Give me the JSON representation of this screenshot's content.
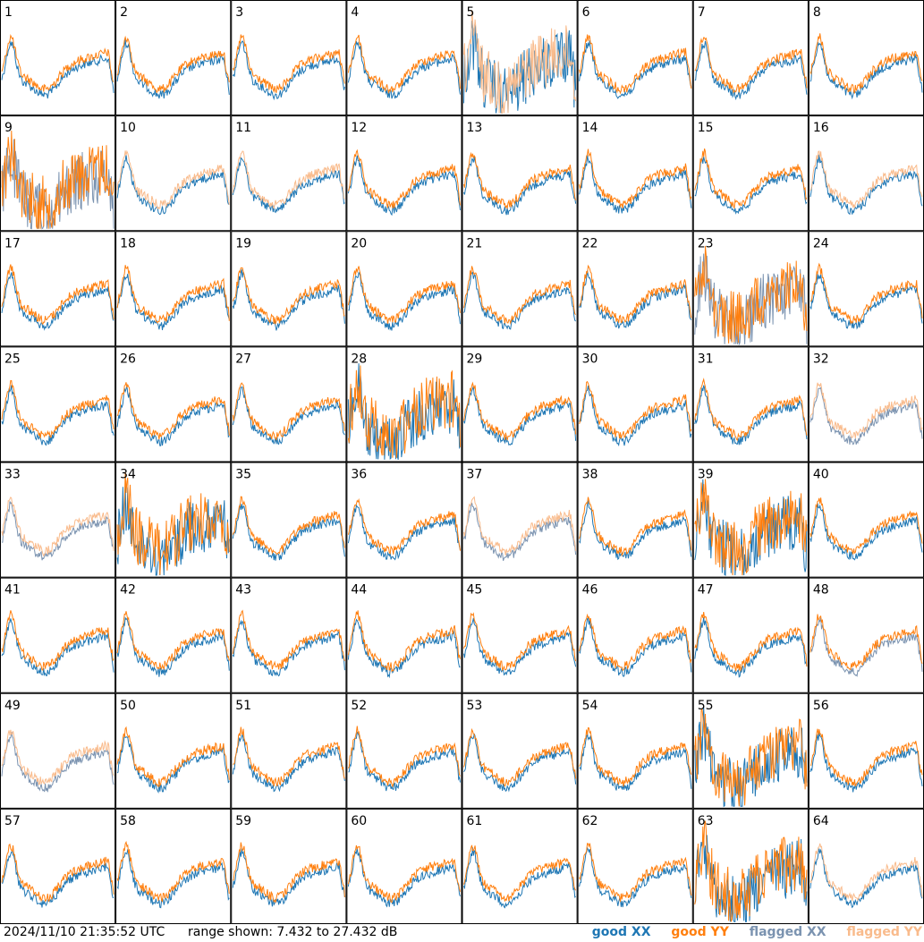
{
  "footer": {
    "timestamp": "2024/11/10 21:35:52 UTC",
    "range": "range shown: 7.432 to 27.432 dB"
  },
  "legend": {
    "good_xx": "good XX",
    "good_yy": "good YY",
    "flagged_xx": "flagged XX",
    "flagged_yy": "flagged YY"
  },
  "colors": {
    "good_xx": "#1f77b4",
    "good_yy": "#ff7f0e",
    "flagged_xx": "#7b93b0",
    "flagged_yy": "#f9bb8c"
  },
  "chart_data": {
    "type": "line",
    "ylim": [
      7.432,
      27.432
    ],
    "grid": "8x8 small multiples",
    "panels": [
      {
        "label": "1",
        "xx": "good",
        "yy": "good"
      },
      {
        "label": "2",
        "xx": "good",
        "yy": "good"
      },
      {
        "label": "3",
        "xx": "good",
        "yy": "good"
      },
      {
        "label": "4",
        "xx": "good",
        "yy": "good"
      },
      {
        "label": "5",
        "xx": "good",
        "yy": "flagged"
      },
      {
        "label": "6",
        "xx": "good",
        "yy": "good"
      },
      {
        "label": "7",
        "xx": "good",
        "yy": "good"
      },
      {
        "label": "8",
        "xx": "good",
        "yy": "good"
      },
      {
        "label": "9",
        "xx": "flagged",
        "yy": "good"
      },
      {
        "label": "10",
        "xx": "good",
        "yy": "flagged"
      },
      {
        "label": "11",
        "xx": "good",
        "yy": "flagged"
      },
      {
        "label": "12",
        "xx": "good",
        "yy": "good"
      },
      {
        "label": "13",
        "xx": "good",
        "yy": "good"
      },
      {
        "label": "14",
        "xx": "good",
        "yy": "good"
      },
      {
        "label": "15",
        "xx": "good",
        "yy": "good"
      },
      {
        "label": "16",
        "xx": "good",
        "yy": "flagged"
      },
      {
        "label": "17",
        "xx": "good",
        "yy": "good"
      },
      {
        "label": "18",
        "xx": "good",
        "yy": "good"
      },
      {
        "label": "19",
        "xx": "good",
        "yy": "good"
      },
      {
        "label": "20",
        "xx": "good",
        "yy": "good"
      },
      {
        "label": "21",
        "xx": "good",
        "yy": "good"
      },
      {
        "label": "22",
        "xx": "good",
        "yy": "good"
      },
      {
        "label": "23",
        "xx": "flagged",
        "yy": "good"
      },
      {
        "label": "24",
        "xx": "good",
        "yy": "good"
      },
      {
        "label": "25",
        "xx": "good",
        "yy": "good"
      },
      {
        "label": "26",
        "xx": "good",
        "yy": "good"
      },
      {
        "label": "27",
        "xx": "good",
        "yy": "good"
      },
      {
        "label": "28",
        "xx": "good",
        "yy": "good"
      },
      {
        "label": "29",
        "xx": "good",
        "yy": "good"
      },
      {
        "label": "30",
        "xx": "good",
        "yy": "good"
      },
      {
        "label": "31",
        "xx": "good",
        "yy": "good"
      },
      {
        "label": "32",
        "xx": "flagged",
        "yy": "flagged"
      },
      {
        "label": "33",
        "xx": "flagged",
        "yy": "flagged"
      },
      {
        "label": "34",
        "xx": "good",
        "yy": "good"
      },
      {
        "label": "35",
        "xx": "good",
        "yy": "good"
      },
      {
        "label": "36",
        "xx": "good",
        "yy": "good"
      },
      {
        "label": "37",
        "xx": "flagged",
        "yy": "flagged"
      },
      {
        "label": "38",
        "xx": "good",
        "yy": "good"
      },
      {
        "label": "39",
        "xx": "good",
        "yy": "good"
      },
      {
        "label": "40",
        "xx": "good",
        "yy": "good"
      },
      {
        "label": "41",
        "xx": "good",
        "yy": "good"
      },
      {
        "label": "42",
        "xx": "good",
        "yy": "good"
      },
      {
        "label": "43",
        "xx": "good",
        "yy": "good"
      },
      {
        "label": "44",
        "xx": "good",
        "yy": "good"
      },
      {
        "label": "45",
        "xx": "good",
        "yy": "good"
      },
      {
        "label": "46",
        "xx": "good",
        "yy": "good"
      },
      {
        "label": "47",
        "xx": "good",
        "yy": "good"
      },
      {
        "label": "48",
        "xx": "flagged",
        "yy": "good"
      },
      {
        "label": "49",
        "xx": "flagged",
        "yy": "flagged"
      },
      {
        "label": "50",
        "xx": "good",
        "yy": "good"
      },
      {
        "label": "51",
        "xx": "good",
        "yy": "good"
      },
      {
        "label": "52",
        "xx": "good",
        "yy": "good"
      },
      {
        "label": "53",
        "xx": "good",
        "yy": "good"
      },
      {
        "label": "54",
        "xx": "good",
        "yy": "good"
      },
      {
        "label": "55",
        "xx": "good",
        "yy": "good"
      },
      {
        "label": "56",
        "xx": "good",
        "yy": "good"
      },
      {
        "label": "57",
        "xx": "good",
        "yy": "good"
      },
      {
        "label": "58",
        "xx": "good",
        "yy": "good"
      },
      {
        "label": "59",
        "xx": "good",
        "yy": "good"
      },
      {
        "label": "60",
        "xx": "good",
        "yy": "good"
      },
      {
        "label": "61",
        "xx": "good",
        "yy": "good"
      },
      {
        "label": "62",
        "xx": "good",
        "yy": "good"
      },
      {
        "label": "63",
        "xx": "good",
        "yy": "good"
      },
      {
        "label": "64",
        "xx": "good",
        "yy": "flagged"
      }
    ]
  }
}
